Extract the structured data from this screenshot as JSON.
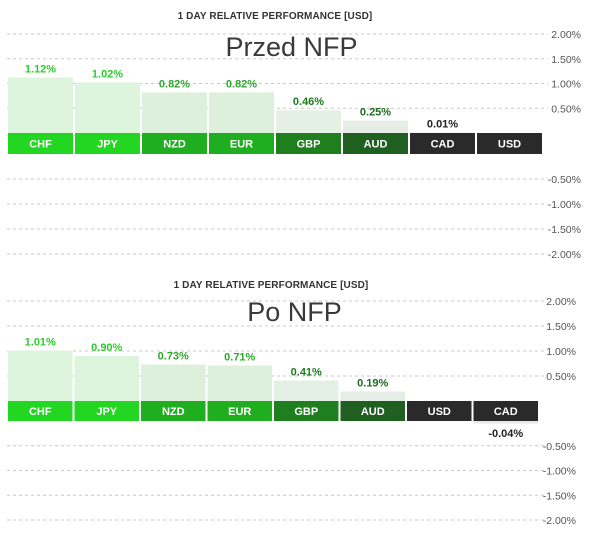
{
  "chart_data": [
    {
      "type": "bar",
      "title": "1 DAY RELATIVE PERFORMANCE  [USD]",
      "annotation": "Przed NFP",
      "categories": [
        "CHF",
        "JPY",
        "NZD",
        "EUR",
        "GBP",
        "AUD",
        "CAD",
        "USD"
      ],
      "values": [
        1.12,
        1.02,
        0.82,
        0.82,
        0.46,
        0.25,
        0.01,
        0
      ],
      "value_labels": [
        "1.12%",
        "1.02%",
        "0.82%",
        "0.82%",
        "0.46%",
        "0.25%",
        "0.01%",
        ""
      ],
      "yticks": [
        2.0,
        1.5,
        1.0,
        0.5,
        -0.5,
        -1.0,
        -1.5,
        -2.0
      ],
      "ytick_labels": [
        "2.00%",
        "1.50%",
        "1.00%",
        "0.50%",
        "-0.50%",
        "-1.00%",
        "-1.50%",
        "-2.00%"
      ],
      "ylim": [
        -2.0,
        2.0
      ],
      "grid": true,
      "label_colors": [
        "#2ecc2e",
        "#2ecc2e",
        "#2ea82e",
        "#2ea82e",
        "#1e7a1e",
        "#1e6a1e",
        "#222222",
        "#222222"
      ],
      "bar_colors": [
        "#dcf5dc",
        "#dcf5dc",
        "#dcf0dc",
        "#dcf0dc",
        "#e4f0e4",
        "#e6ece6",
        "#eeeeee",
        "#eeeeee"
      ],
      "tab_colors": [
        "#22d622",
        "#22d622",
        "#1fae1f",
        "#1fae1f",
        "#1f7f1f",
        "#1f5f1f",
        "#2a2a2a",
        "#2a2a2a"
      ]
    },
    {
      "type": "bar",
      "title": "1 DAY RELATIVE PERFORMANCE  [USD]",
      "annotation": "Po NFP",
      "categories": [
        "CHF",
        "JPY",
        "NZD",
        "EUR",
        "GBP",
        "AUD",
        "USD",
        "CAD"
      ],
      "values": [
        1.01,
        0.9,
        0.73,
        0.71,
        0.41,
        0.19,
        0,
        -0.04
      ],
      "value_labels": [
        "1.01%",
        "0.90%",
        "0.73%",
        "0.71%",
        "0.41%",
        "0.19%",
        "",
        "-0.04%"
      ],
      "yticks": [
        2.0,
        1.5,
        1.0,
        0.5,
        -0.5,
        -1.0,
        -1.5,
        -2.0
      ],
      "ytick_labels": [
        "2.00%",
        "1.50%",
        "1.00%",
        "0.50%",
        "-0.50%",
        "-1.00%",
        "-1.50%",
        "-2.00%"
      ],
      "ylim": [
        -2.0,
        2.0
      ],
      "grid": true,
      "label_colors": [
        "#2ecc2e",
        "#2ecc2e",
        "#2ea82e",
        "#2ea82e",
        "#1e7a1e",
        "#1e6a1e",
        "#222222",
        "#222222"
      ],
      "bar_colors": [
        "#dcf5dc",
        "#dcf5dc",
        "#dcf0dc",
        "#dcf0dc",
        "#e4f0e4",
        "#e6ece6",
        "#eeeeee",
        "#eeeeee"
      ],
      "tab_colors": [
        "#22d622",
        "#22d622",
        "#1fae1f",
        "#1fae1f",
        "#1f7f1f",
        "#1f5f1f",
        "#2a2a2a",
        "#2a2a2a"
      ]
    }
  ]
}
